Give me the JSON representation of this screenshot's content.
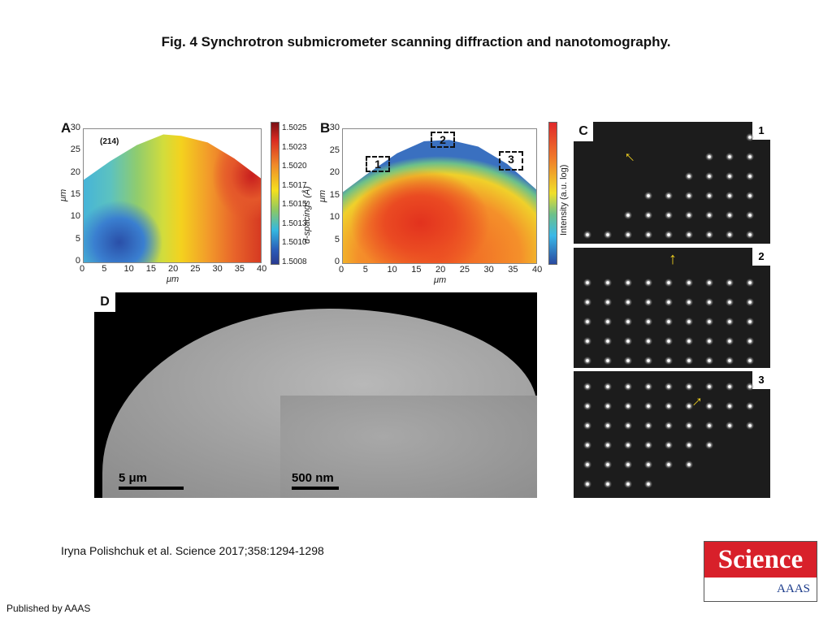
{
  "title": "Fig. 4 Synchrotron submicrometer scanning diffraction and nanotomography.",
  "panel_a": {
    "label": "A",
    "annotation": "(214)",
    "xlabel": "μm",
    "ylabel": "μm",
    "xticks": [
      "0",
      "5",
      "10",
      "15",
      "20",
      "25",
      "30",
      "35",
      "40"
    ],
    "yticks": [
      "0",
      "5",
      "10",
      "15",
      "20",
      "25",
      "30"
    ],
    "colorbar_label": "d-spacings (Å)",
    "colorbar_ticks": [
      "1.5025",
      "1.5023",
      "1.5020",
      "1.5017",
      "1.5015",
      "1.5013",
      "1.5010",
      "1.5008"
    ]
  },
  "panel_b": {
    "label": "B",
    "xlabel": "μm",
    "ylabel": "μm",
    "xticks": [
      "0",
      "5",
      "10",
      "15",
      "20",
      "25",
      "30",
      "35",
      "40"
    ],
    "yticks": [
      "0",
      "5",
      "10",
      "15",
      "20",
      "25",
      "30"
    ],
    "colorbar_label": "Intensity (a.u. log)",
    "boxes": [
      "1",
      "2",
      "3"
    ]
  },
  "panel_c": {
    "label": "C",
    "subpanels": [
      "1",
      "2",
      "3"
    ]
  },
  "panel_d": {
    "label": "D",
    "scale_main": "5 μm",
    "scale_inset": "500 nm"
  },
  "citation": "Iryna Polishchuk et al. Science 2017;358:1294-1298",
  "publisher": "Published by AAAS",
  "logo": {
    "name": "Science",
    "sub": "AAAS"
  }
}
